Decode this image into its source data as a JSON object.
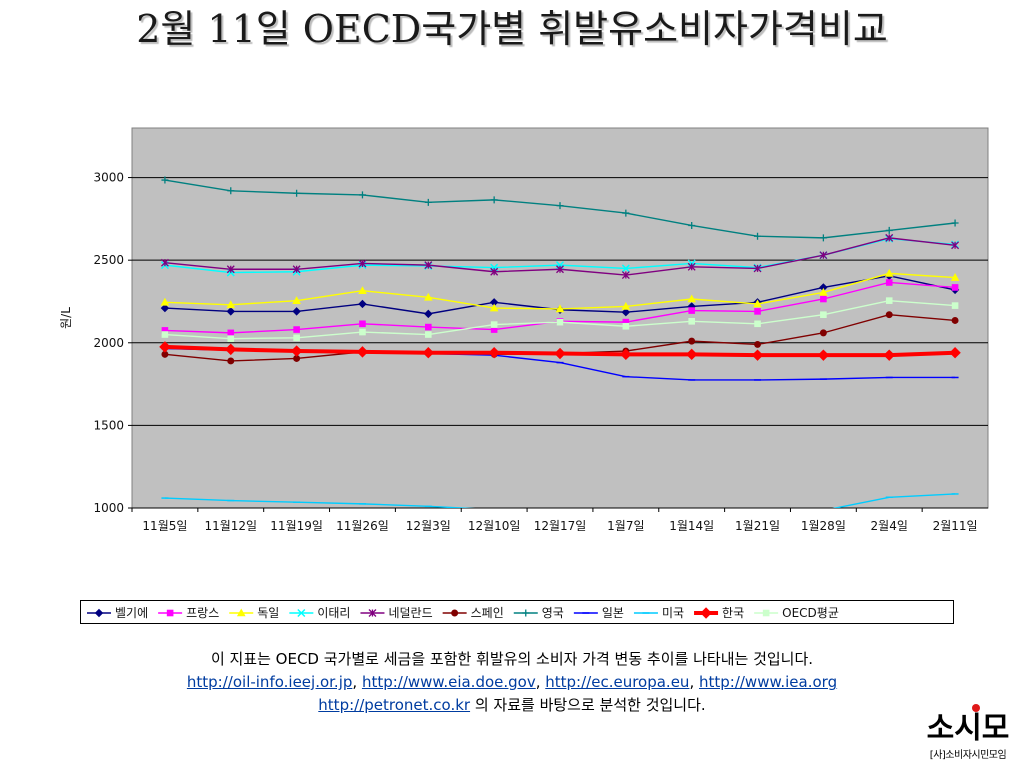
{
  "title": "2월 11일 OECD국가별 휘발유소비자가격비교",
  "chart_data": {
    "type": "line",
    "ylabel": "원/L",
    "ylim": [
      1000,
      3300
    ],
    "yticks": [
      1000,
      1500,
      2000,
      2500,
      3000
    ],
    "grid": true,
    "legend_position": "bottom",
    "categories": [
      "11월5일",
      "11월12일",
      "11월19일",
      "11월26일",
      "12월3일",
      "12월10일",
      "12월17일",
      "1월7일",
      "1월14일",
      "1월21일",
      "1월28일",
      "2월4일",
      "2월11일"
    ],
    "series": [
      {
        "name": "벨기에",
        "color": "#000080",
        "marker": "diamond",
        "values": [
          2210,
          2190,
          2190,
          2235,
          2175,
          2245,
          2200,
          2185,
          2220,
          2245,
          2335,
          2405,
          2320
        ]
      },
      {
        "name": "프랑스",
        "color": "#ff00ff",
        "marker": "square",
        "values": [
          2075,
          2060,
          2080,
          2115,
          2095,
          2080,
          2130,
          2125,
          2195,
          2190,
          2265,
          2365,
          2335
        ]
      },
      {
        "name": "독일",
        "color": "#ffff00",
        "marker": "triangle",
        "values": [
          2245,
          2230,
          2255,
          2315,
          2275,
          2210,
          2205,
          2220,
          2265,
          2235,
          2305,
          2420,
          2395
        ]
      },
      {
        "name": "이태리",
        "color": "#00ffff",
        "marker": "x",
        "values": [
          2470,
          2425,
          2430,
          2470,
          2465,
          2455,
          2470,
          2450,
          2480,
          2455,
          2530,
          2630,
          2595
        ]
      },
      {
        "name": "네덜란드",
        "color": "#800080",
        "marker": "star",
        "values": [
          2485,
          2445,
          2445,
          2480,
          2470,
          2430,
          2445,
          2410,
          2460,
          2450,
          2530,
          2635,
          2590
        ]
      },
      {
        "name": "스페인",
        "color": "#800000",
        "marker": "circle",
        "values": [
          1930,
          1890,
          1905,
          1945,
          1940,
          1930,
          1935,
          1950,
          2010,
          1990,
          2060,
          2170,
          2135
        ]
      },
      {
        "name": "영국",
        "color": "#008080",
        "marker": "plus",
        "values": [
          2985,
          2920,
          2905,
          2895,
          2850,
          2865,
          2830,
          2785,
          2710,
          2645,
          2635,
          2680,
          2725
        ]
      },
      {
        "name": "일본",
        "color": "#0000ff",
        "marker": "dash",
        "values": [
          1965,
          1955,
          1950,
          1940,
          1935,
          1925,
          1880,
          1795,
          1775,
          1775,
          1780,
          1790,
          1790
        ]
      },
      {
        "name": "미국",
        "color": "#00ccff",
        "marker": "dash",
        "values": [
          1060,
          1045,
          1035,
          1025,
          1010,
          990,
          980,
          975,
          975,
          970,
          985,
          1065,
          1085
        ]
      },
      {
        "name": "한국",
        "color": "#ff0000",
        "marker": "diamond",
        "values": [
          1975,
          1960,
          1950,
          1945,
          1940,
          1940,
          1935,
          1930,
          1930,
          1925,
          1925,
          1925,
          1940
        ]
      },
      {
        "name": "OECD평균",
        "color": "#ccffcc",
        "marker": "square",
        "values": [
          2050,
          2025,
          2030,
          2065,
          2050,
          2110,
          2125,
          2100,
          2130,
          2115,
          2170,
          2255,
          2225
        ]
      }
    ]
  },
  "description": {
    "line1": "이 지표는 OECD 국가별로 세금을 포함한 휘발유의 소비자 가격 변동 추이를 나타내는 것입니다.",
    "link1": "http://oil-info.ieej.or.jp",
    "link2": "http://www.eia.doe.gov",
    "link3": "http://ec.europa.eu",
    "link4": "http://www.iea.org",
    "link5": "http://petronet.co.kr",
    "sep": ", ",
    "tail": " 의 자료를 바탕으로 분석한 것입니다."
  },
  "logo": {
    "mark": "소시모",
    "subtitle": "[사]소비자시민모임",
    "accent_color": "#e01818"
  }
}
